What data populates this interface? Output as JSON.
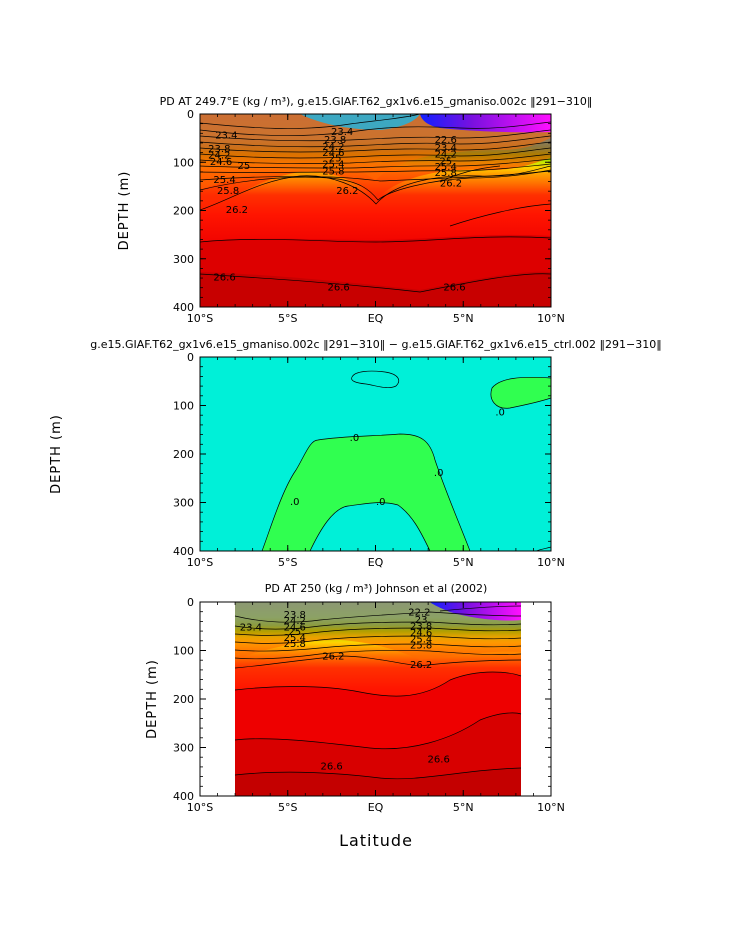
{
  "chart_data": [
    {
      "type": "heatmap",
      "title": "PD AT 249.7°E (kg / m³), g.e15.GIAF.T62_gx1v6.e15_gmaniso.002c ‖291−310‖",
      "xlabel": "",
      "ylabel": "DEPTH  (m)",
      "xlim": [
        -10,
        10
      ],
      "ylim": [
        400,
        0
      ],
      "x_ticks": [
        "10°S",
        "5°S",
        "EQ",
        "5°N",
        "10°N"
      ],
      "y_ticks": [
        "0",
        "100",
        "200",
        "300",
        "400"
      ],
      "x_data_range": [
        -10,
        10
      ],
      "contour_labels": [
        {
          "text": "23.4",
          "x": -8.5,
          "y": 42
        },
        {
          "text": "23.8",
          "x": -8.9,
          "y": 70
        },
        {
          "text": "24.2",
          "x": -8.9,
          "y": 84
        },
        {
          "text": "24.6",
          "x": -8.8,
          "y": 97
        },
        {
          "text": "25",
          "x": -7.5,
          "y": 106
        },
        {
          "text": "25.4",
          "x": -8.6,
          "y": 135
        },
        {
          "text": "25.8",
          "x": -8.4,
          "y": 157
        },
        {
          "text": "26.2",
          "x": -7.9,
          "y": 197
        },
        {
          "text": "26.6",
          "x": -8.6,
          "y": 337
        },
        {
          "text": "23.4",
          "x": -1.9,
          "y": 35
        },
        {
          "text": "23.8",
          "x": -2.3,
          "y": 52
        },
        {
          "text": "24.2",
          "x": -2.4,
          "y": 66
        },
        {
          "text": "24.6",
          "x": -2.4,
          "y": 79
        },
        {
          "text": "25",
          "x": -2.3,
          "y": 90
        },
        {
          "text": "25.4",
          "x": -2.4,
          "y": 103
        },
        {
          "text": "25.8",
          "x": -2.4,
          "y": 117
        },
        {
          "text": "26.2",
          "x": -1.6,
          "y": 157
        },
        {
          "text": "26.6",
          "x": -2.1,
          "y": 357
        },
        {
          "text": "22.6",
          "x": 4.0,
          "y": 52
        },
        {
          "text": "23.4",
          "x": 4.0,
          "y": 68
        },
        {
          "text": "24.2",
          "x": 4.0,
          "y": 82
        },
        {
          "text": "25",
          "x": 4.0,
          "y": 96
        },
        {
          "text": "25.4",
          "x": 4.0,
          "y": 108
        },
        {
          "text": "25.8",
          "x": 4.0,
          "y": 120
        },
        {
          "text": "26.2",
          "x": 4.3,
          "y": 142
        },
        {
          "text": "26.6",
          "x": 4.5,
          "y": 357
        }
      ]
    },
    {
      "type": "heatmap",
      "title": "g.e15.GIAF.T62_gx1v6.e15_gmaniso.002c ‖291−310‖ − g.e15.GIAF.T62_gx1v6.e15_ctrl.002 ‖291−310‖",
      "xlabel": "",
      "ylabel": "DEPTH  (m)",
      "xlim": [
        -10,
        10
      ],
      "ylim": [
        400,
        0
      ],
      "x_ticks": [
        "10°S",
        "5°S",
        "EQ",
        "5°N",
        "10°N"
      ],
      "y_ticks": [
        "0",
        "100",
        "200",
        "300",
        "400"
      ],
      "x_data_range": [
        -10,
        10
      ],
      "contour_labels": [
        {
          "text": ".0",
          "x": -1.2,
          "y": 165
        },
        {
          "text": ".0",
          "x": 3.6,
          "y": 237
        },
        {
          "text": ".0",
          "x": -4.6,
          "y": 297
        },
        {
          "text": ".0",
          "x": 0.3,
          "y": 297
        },
        {
          "text": ".0",
          "x": 7.1,
          "y": 112
        }
      ]
    },
    {
      "type": "heatmap",
      "title": "PD AT 250 (kg / m³) Johnson et al (2002)",
      "xlabel": "Latitude",
      "ylabel": "DEPTH  (m)",
      "xlim": [
        -10,
        10
      ],
      "ylim": [
        400,
        0
      ],
      "x_ticks": [
        "10°S",
        "5°S",
        "EQ",
        "5°N",
        "10°N"
      ],
      "y_ticks": [
        "0",
        "100",
        "200",
        "300",
        "400"
      ],
      "x_data_range": [
        -8,
        8
      ],
      "contour_labels": [
        {
          "text": "23.4",
          "x": -7.1,
          "y": 50
        },
        {
          "text": "23.8",
          "x": -4.6,
          "y": 25
        },
        {
          "text": "24.2",
          "x": -4.6,
          "y": 37
        },
        {
          "text": "24.6",
          "x": -4.6,
          "y": 50
        },
        {
          "text": "25",
          "x": -4.6,
          "y": 60
        },
        {
          "text": "25.4",
          "x": -4.6,
          "y": 72
        },
        {
          "text": "25.8",
          "x": -4.6,
          "y": 85
        },
        {
          "text": "26.2",
          "x": -2.4,
          "y": 110
        },
        {
          "text": "26.6",
          "x": -2.5,
          "y": 337
        },
        {
          "text": "22.2",
          "x": 2.5,
          "y": 20
        },
        {
          "text": "23",
          "x": 2.6,
          "y": 35
        },
        {
          "text": "23.8",
          "x": 2.6,
          "y": 48
        },
        {
          "text": "24.6",
          "x": 2.6,
          "y": 62
        },
        {
          "text": "25.4",
          "x": 2.6,
          "y": 75
        },
        {
          "text": "25.8",
          "x": 2.6,
          "y": 88
        },
        {
          "text": "26.2",
          "x": 2.6,
          "y": 128
        },
        {
          "text": "26.6",
          "x": 3.6,
          "y": 323
        }
      ]
    }
  ]
}
